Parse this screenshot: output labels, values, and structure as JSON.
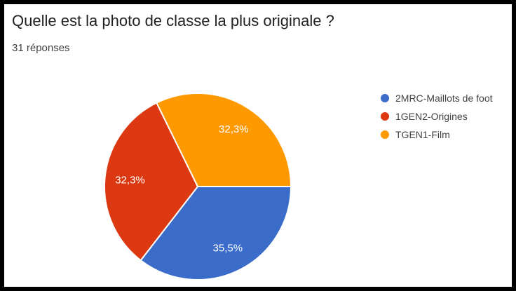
{
  "card": {
    "title": "Quelle est la photo de classe la plus originale ?",
    "subtitle": "31 réponses"
  },
  "chart_data": {
    "type": "pie",
    "title": "Quelle est la photo de classe la plus originale ?",
    "subtitle": "31 réponses",
    "categories": [
      "2MRC-Maillots de foot",
      "1GEN2-Origines",
      "TGEN1-Film"
    ],
    "values": [
      35.5,
      32.3,
      32.3
    ],
    "value_labels": [
      "35,5%",
      "32,3%",
      "32,3%"
    ],
    "colors": [
      "#3b6cc9",
      "#dc3912",
      "#ff9900"
    ],
    "slice_border_color": "#ffffff",
    "legend_position": "right",
    "start_angle_deg": 0,
    "direction": "clockwise"
  }
}
